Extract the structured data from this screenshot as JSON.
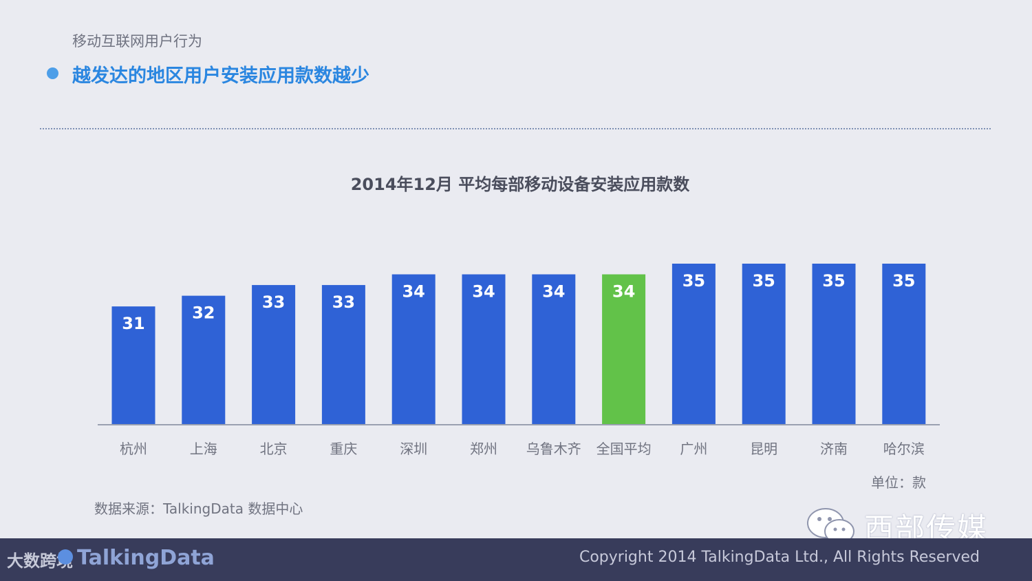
{
  "section": "移动互联网用户行为",
  "headline": "越发达的地区用户安装应用款数越少",
  "unit_label": "单位：款",
  "source": "数据来源：TalkingData 数据中心",
  "watermark": "西部传媒",
  "footer": {
    "logo_prefix": "大数跨境",
    "brand": "TalkingData",
    "copyright": "Copyright 2014 TalkingData Ltd., All Rights Reserved"
  },
  "colors": {
    "bar": "#2f62d6",
    "highlight": "#62c249",
    "axis": "#9aa0b0",
    "category_text": "#707380"
  },
  "chart_data": {
    "type": "bar",
    "title": "2014年12月 平均每部移动设备安装应用款数",
    "categories": [
      "杭州",
      "上海",
      "北京",
      "重庆",
      "深圳",
      "郑州",
      "乌鲁木齐",
      "全国平均",
      "广州",
      "昆明",
      "济南",
      "哈尔滨"
    ],
    "values": [
      31,
      32,
      33,
      33,
      34,
      34,
      34,
      34,
      35,
      35,
      35,
      35
    ],
    "highlight_category": "全国平均",
    "ylim": [
      20,
      35
    ],
    "xlabel": "",
    "ylabel": "",
    "grid": false,
    "legend": "none"
  }
}
